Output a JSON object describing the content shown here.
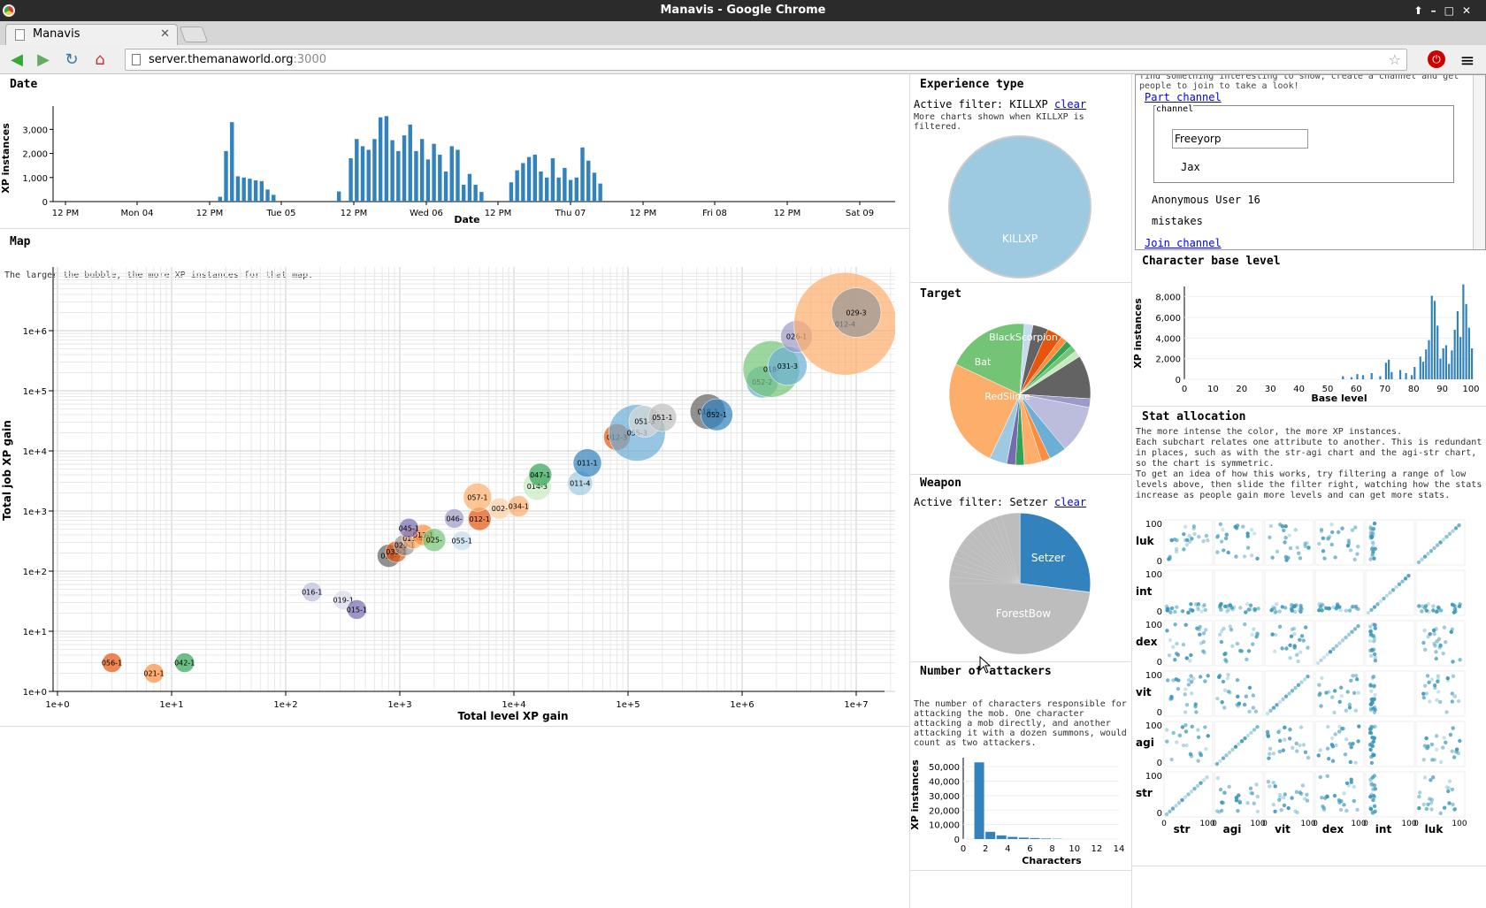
{
  "window": {
    "title": "Manavis - Google Chrome"
  },
  "tab": {
    "title": "Manavis"
  },
  "address": {
    "host": "server.themanaworld.org",
    "port": ":3000"
  },
  "date_panel": {
    "title": "Date",
    "ylabel": "XP instances",
    "xlabel": "Date",
    "yticks": [
      "3,000",
      "2,000",
      "1,000",
      "0"
    ],
    "xticks": [
      "12 PM",
      "Mon 04",
      "12 PM",
      "Tue 05",
      "12 PM",
      "Wed 06",
      "12 PM",
      "Thu 07",
      "12 PM",
      "Fri 08",
      "12 PM",
      "Sat 09"
    ]
  },
  "map_panel": {
    "title": "Map",
    "description": "The larger the bubble, the more XP instances for that map.",
    "xlabel": "Total level XP gain",
    "ylabel": "Total job XP gain",
    "xticks": [
      "1e+0",
      "1e+1",
      "1e+2",
      "1e+3",
      "1e+4",
      "1e+5",
      "1e+6",
      "1e+7"
    ],
    "yticks": [
      "1e+6",
      "1e+5",
      "1e+4",
      "1e+3",
      "1e+2",
      "1e+1",
      "1e+0"
    ]
  },
  "exp_panel": {
    "title": "Experience type",
    "filter_prefix": "Active filter: KILLXP",
    "clear": "clear",
    "note": "More charts shown when KILLXP is filtered.",
    "slice_label": "KILLXP"
  },
  "target_panel": {
    "title": "Target",
    "labels": [
      "BlackScorpion",
      "Bat",
      "RedSlime"
    ]
  },
  "weapon_panel": {
    "title": "Weapon",
    "filter_prefix": "Active filter: Setzer",
    "clear": "clear",
    "labels": [
      "Setzer",
      "ForestBow"
    ]
  },
  "attackers_panel": {
    "title": "Number of attackers",
    "description": "The number of characters responsible for attacking the mob. One character attacking a mob directly, and another attacking it with a dozen summons, would count as two attackers.",
    "ylabel": "XP instances",
    "xlabel": "Characters",
    "yticks": [
      "50,000",
      "40,000",
      "30,000",
      "20,000",
      "10,000",
      "0"
    ],
    "xticks": [
      "0",
      "2",
      "4",
      "6",
      "8",
      "10",
      "12",
      "14"
    ]
  },
  "chat": {
    "intro": "find something interesting to show, create a channel and get people to join to take a look!",
    "part": "Part channel",
    "legend": "channel",
    "channel_value": "Freeyorp",
    "user1": "Jax",
    "user2": "Anonymous User 16",
    "user3": "mistakes",
    "join": "Join channel"
  },
  "base_panel": {
    "title": "Character base level",
    "ylabel": "XP instances",
    "xlabel": "Base level",
    "yticks": [
      "8,000",
      "6,000",
      "4,000",
      "2,000",
      "0"
    ],
    "xticks": [
      "0",
      "10",
      "20",
      "30",
      "40",
      "50",
      "60",
      "70",
      "80",
      "90",
      "100"
    ]
  },
  "stat_panel": {
    "title": "Stat allocation",
    "description": "The more intense the color, the more XP instances.\nEach subchart relates one attribute to another. This is redundant in places, such as with the str-agi chart and the agi-str chart, so the chart is symmetric.\nTo get an idea of how this works, try filtering a range of low levels above, then slide the filter right, watching how the stats increase as people gain more levels and can get more stats.",
    "rows": [
      "luk",
      "int",
      "dex",
      "vit",
      "agi",
      "str"
    ],
    "cols": [
      "str",
      "agi",
      "vit",
      "dex",
      "int",
      "luk"
    ],
    "tick_max": "100",
    "tick_min": "0"
  },
  "chart_data": [
    {
      "type": "bar",
      "title": "Date",
      "ylabel": "XP instances",
      "xlabel": "Date",
      "ylim": [
        0,
        3600
      ],
      "x_hours_from_first_tick": [
        38,
        39,
        40,
        41,
        42,
        43,
        44,
        45,
        46,
        47,
        48,
        49,
        58,
        60,
        61,
        62,
        63,
        64,
        65,
        66,
        67,
        68,
        69,
        70,
        71,
        72,
        73,
        74,
        75,
        76,
        77,
        78,
        79,
        80,
        81,
        82,
        83,
        84,
        85,
        86,
        87,
        88,
        89,
        90,
        91,
        92,
        93,
        94,
        95,
        96,
        97,
        98,
        99,
        100,
        101,
        102,
        103
      ],
      "values": [
        200,
        2100,
        3300,
        1050,
        1000,
        950,
        880,
        850,
        500,
        280,
        0,
        0,
        420,
        1800,
        2600,
        2300,
        2150,
        2600,
        3500,
        3550,
        2550,
        2100,
        2750,
        3200,
        2100,
        2600,
        1750,
        2400,
        1950,
        1250,
        2300,
        2150,
        700,
        1150,
        700,
        400,
        0,
        0,
        0,
        0,
        800,
        1300,
        1600,
        1850,
        1950,
        1250,
        1000,
        1800,
        1000,
        1400,
        900,
        1000,
        2250,
        1700,
        1200,
        750,
        0
      ]
    },
    {
      "type": "scatter",
      "title": "Map",
      "xlabel": "Total level XP gain",
      "ylabel": "Total job XP gain",
      "log_x": true,
      "log_y": true,
      "points": [
        {
          "label": "056-1",
          "x": 3,
          "y": 3,
          "r": 11,
          "color": "#e6550d"
        },
        {
          "label": "021-1",
          "x": 7,
          "y": 2,
          "r": 11,
          "color": "#fd8d3c"
        },
        {
          "label": "042-1",
          "x": 13,
          "y": 3,
          "r": 11,
          "color": "#31a354"
        },
        {
          "label": "016-1",
          "x": 170,
          "y": 45,
          "r": 11,
          "color": "#bcbddc"
        },
        {
          "label": "019-1",
          "x": 320,
          "y": 33,
          "r": 11,
          "color": "#dadaeb"
        },
        {
          "label": "015-1",
          "x": 420,
          "y": 23,
          "r": 11,
          "color": "#756bb1"
        },
        {
          "label": "018-",
          "x": 800,
          "y": 180,
          "r": 13,
          "color": "#636363"
        },
        {
          "label": "033-1",
          "x": 930,
          "y": 210,
          "r": 12,
          "color": "#e6550d"
        },
        {
          "label": "029-1",
          "x": 1100,
          "y": 270,
          "r": 12,
          "color": "#969696"
        },
        {
          "label": "011-4",
          "x": 1300,
          "y": 350,
          "r": 12,
          "color": "#fdae6b"
        },
        {
          "label": "013-1",
          "x": 1600,
          "y": 400,
          "r": 12,
          "color": "#fd8d3c"
        },
        {
          "label": "025-",
          "x": 2000,
          "y": 330,
          "r": 13,
          "color": "#74c476"
        },
        {
          "label": "045-1",
          "x": 1200,
          "y": 520,
          "r": 11,
          "color": "#756bb1"
        },
        {
          "label": "055-1",
          "x": 3500,
          "y": 320,
          "r": 11,
          "color": "#c6dbef"
        },
        {
          "label": "046-",
          "x": 3000,
          "y": 750,
          "r": 11,
          "color": "#9e9ac8"
        },
        {
          "label": "012-1",
          "x": 5000,
          "y": 740,
          "r": 13,
          "color": "#e6550d"
        },
        {
          "label": "057-1",
          "x": 4800,
          "y": 1700,
          "r": 16,
          "color": "#fdae6b"
        },
        {
          "label": "002-",
          "x": 7500,
          "y": 1100,
          "r": 12,
          "color": "#fdd0a2"
        },
        {
          "label": "034-1",
          "x": 11000,
          "y": 1200,
          "r": 12,
          "color": "#fdae6b"
        },
        {
          "label": "014-3",
          "x": 16000,
          "y": 2600,
          "r": 16,
          "color": "#c7e9c0"
        },
        {
          "label": "047-1",
          "x": 17000,
          "y": 4000,
          "r": 13,
          "color": "#31a354"
        },
        {
          "label": "011-4",
          "x": 38000,
          "y": 2900,
          "r": 14,
          "color": "#9ecae1"
        },
        {
          "label": "011-1",
          "x": 44000,
          "y": 6300,
          "r": 16,
          "color": "#3182bd"
        },
        {
          "label": "012-3",
          "x": 80000,
          "y": 17000,
          "r": 15,
          "color": "#e6550d"
        },
        {
          "label": "055-3",
          "x": 120000,
          "y": 20000,
          "r": 32,
          "color": "#6baed6"
        },
        {
          "label": "051-3",
          "x": 140000,
          "y": 31000,
          "r": 18,
          "color": "#d9d9d9"
        },
        {
          "label": "051-1",
          "x": 200000,
          "y": 36000,
          "r": 16,
          "color": "#bdbdbd"
        },
        {
          "label": "018-1",
          "x": 500000,
          "y": 45000,
          "r": 20,
          "color": "#636363"
        },
        {
          "label": "052-1",
          "x": 600000,
          "y": 40000,
          "r": 18,
          "color": "#3182bd"
        },
        {
          "label": "052-2",
          "x": 1500000,
          "y": 140000,
          "r": 18,
          "color": "#6baed6"
        },
        {
          "label": "018-",
          "x": 1800000,
          "y": 230000,
          "r": 32,
          "color": "#74c476"
        },
        {
          "label": "031-3",
          "x": 2500000,
          "y": 260000,
          "r": 22,
          "color": "#6baed6"
        },
        {
          "label": "026-1",
          "x": 3000000,
          "y": 800000,
          "r": 18,
          "color": "#9e9ac8"
        },
        {
          "label": "012-4",
          "x": 8000000,
          "y": 1300000,
          "r": 58,
          "color": "#fdae6b"
        },
        {
          "label": "029-3",
          "x": 10000000,
          "y": 2000000,
          "r": 28,
          "color": "#969696"
        }
      ]
    },
    {
      "type": "pie",
      "title": "Experience type",
      "labels": [
        "KILLXP"
      ],
      "values": [
        100
      ]
    },
    {
      "type": "pie",
      "title": "Target",
      "labels": [
        "BlackScorpion",
        "Bat",
        "RedSlime"
      ],
      "values": [
        14,
        11,
        32
      ]
    },
    {
      "type": "pie",
      "title": "Weapon",
      "labels": [
        "Setzer",
        "ForestBow"
      ],
      "values": [
        27,
        73
      ]
    },
    {
      "type": "bar",
      "title": "Number of attackers",
      "xlabel": "Characters",
      "ylabel": "XP instances",
      "ylim": [
        0,
        55000
      ],
      "categories": [
        "1",
        "2",
        "3",
        "4",
        "5",
        "6",
        "7",
        "8"
      ],
      "values": [
        53000,
        5000,
        2500,
        1500,
        1000,
        700,
        400,
        200
      ]
    },
    {
      "type": "bar",
      "title": "Character base level",
      "xlabel": "Base level",
      "ylabel": "XP instances",
      "ylim": [
        0,
        9000
      ],
      "categories": [
        "55",
        "58",
        "60",
        "62",
        "65",
        "68",
        "70",
        "71",
        "72",
        "75",
        "77",
        "79",
        "80",
        "82",
        "83",
        "84",
        "85",
        "86",
        "87",
        "88",
        "89",
        "90",
        "91",
        "92",
        "93",
        "94",
        "95",
        "96",
        "97",
        "98",
        "99",
        "100"
      ],
      "values": [
        300,
        200,
        500,
        400,
        600,
        300,
        1600,
        1900,
        700,
        900,
        600,
        400,
        1200,
        2200,
        1700,
        2900,
        3800,
        8100,
        7600,
        5200,
        2000,
        3000,
        3300,
        1500,
        2800,
        4800,
        6600,
        4100,
        9200,
        7300,
        5000,
        3000
      ]
    },
    {
      "type": "heatmap",
      "title": "Stat allocation",
      "rows": [
        "luk",
        "int",
        "dex",
        "vit",
        "agi",
        "str"
      ],
      "cols": [
        "str",
        "agi",
        "vit",
        "dex",
        "int",
        "luk"
      ],
      "range": [
        0,
        100
      ]
    }
  ]
}
